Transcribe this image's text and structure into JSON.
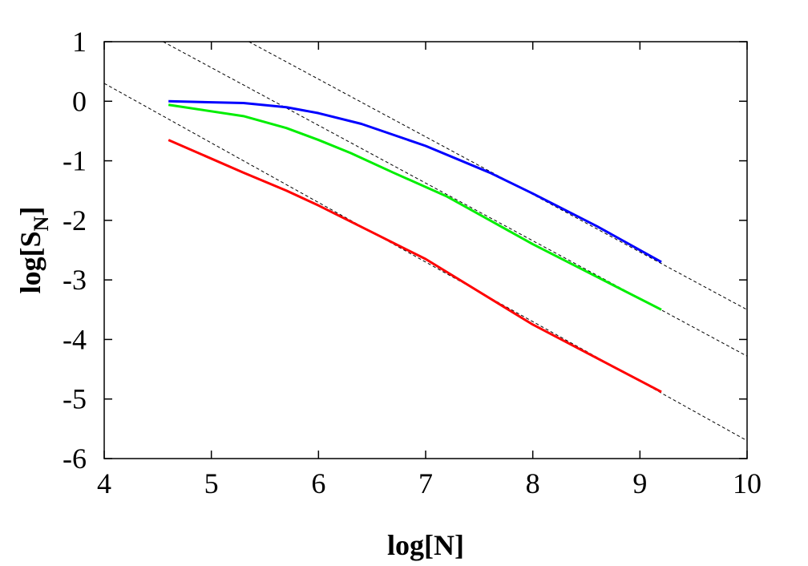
{
  "chart_data": {
    "type": "line",
    "title": "",
    "xlabel": "log[N]",
    "ylabel": {
      "main": "log[S",
      "sub": "N",
      "close": "]"
    },
    "xlim": [
      4,
      10
    ],
    "ylim": [
      -6,
      1
    ],
    "xticks": [
      4,
      5,
      6,
      7,
      8,
      9,
      10
    ],
    "yticks": [
      1,
      0,
      -1,
      -2,
      -3,
      -4,
      -5,
      -6
    ],
    "xtick_labels": [
      "4",
      "5",
      "6",
      "7",
      "8",
      "9",
      "10"
    ],
    "ytick_labels": [
      "1",
      "0",
      "-1",
      "-2",
      "-3",
      "-4",
      "-5",
      "-6"
    ],
    "grid": false,
    "series": [
      {
        "color": "#0000ff",
        "x": [
          4.6,
          5.3,
          5.7,
          6.0,
          6.4,
          7.0,
          7.6,
          8.0,
          8.6,
          9.2
        ],
        "y": [
          0.0,
          -0.03,
          -0.1,
          -0.2,
          -0.38,
          -0.75,
          -1.2,
          -1.55,
          -2.1,
          -2.7
        ]
      },
      {
        "color": "#00ee00",
        "x": [
          4.6,
          5.3,
          5.7,
          6.0,
          6.3,
          6.7,
          7.2,
          7.6,
          8.0,
          8.6,
          9.2
        ],
        "y": [
          -0.06,
          -0.25,
          -0.45,
          -0.65,
          -0.87,
          -1.2,
          -1.6,
          -2.0,
          -2.4,
          -2.95,
          -3.5
        ]
      },
      {
        "color": "#ff0000",
        "x": [
          4.6,
          5.3,
          5.7,
          6.0,
          6.5,
          7.0,
          8.0,
          9.2
        ],
        "y": [
          -0.65,
          -1.2,
          -1.5,
          -1.75,
          -2.2,
          -2.65,
          -3.75,
          -4.88
        ]
      }
    ],
    "reference_lines": [
      {
        "color": "#000000",
        "style": "dashed",
        "x": [
          5.35,
          10.0
        ],
        "y": [
          1.0,
          -3.5
        ]
      },
      {
        "color": "#000000",
        "style": "dashed",
        "x": [
          4.55,
          10.0
        ],
        "y": [
          1.0,
          -4.28
        ]
      },
      {
        "color": "#000000",
        "style": "dashed",
        "x": [
          4.0,
          10.0
        ],
        "y": [
          0.3,
          -5.7
        ]
      }
    ]
  }
}
